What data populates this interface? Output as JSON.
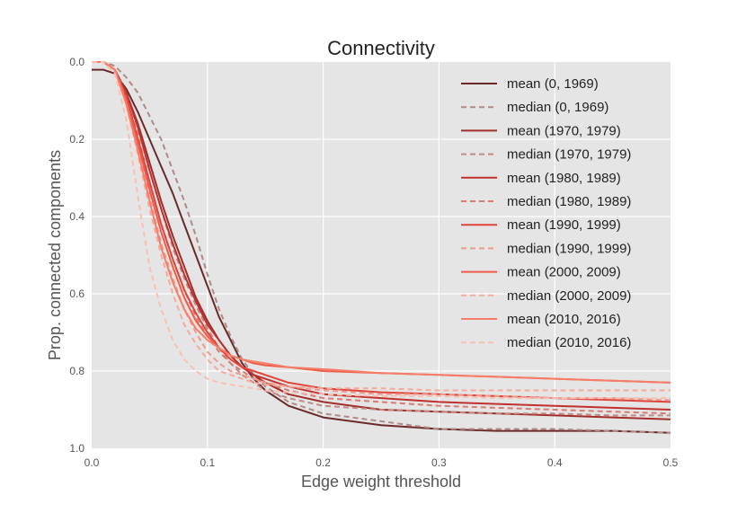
{
  "chart_data": {
    "type": "line",
    "title": "Connectivity",
    "xlabel": "Edge weight threshold",
    "ylabel": "Prop. connected components",
    "xlim": [
      0.0,
      0.5
    ],
    "ylim": [
      0.0,
      1.0
    ],
    "y_inverted": true,
    "grid": true,
    "legend_position": "top-right",
    "x_ticks": [
      0.0,
      0.1,
      0.2,
      0.3,
      0.4,
      0.5
    ],
    "x_tick_labels": [
      "0.0",
      "0.1",
      "0.2",
      "0.3",
      "0.4",
      "0.5"
    ],
    "y_ticks": [
      0.0,
      0.2,
      0.4,
      0.6,
      0.8,
      1.0
    ],
    "y_tick_labels": [
      "0.0",
      "0.2",
      "0.4",
      "0.6",
      "0.8",
      "1.0"
    ],
    "x": [
      0.0,
      0.01,
      0.02,
      0.03,
      0.04,
      0.05,
      0.06,
      0.07,
      0.08,
      0.09,
      0.1,
      0.11,
      0.12,
      0.13,
      0.14,
      0.15,
      0.17,
      0.2,
      0.25,
      0.3,
      0.35,
      0.4,
      0.45,
      0.5
    ],
    "series": [
      {
        "name": "mean (0, 1969)",
        "style": "solid",
        "color": "#6b2a2a",
        "values": [
          0.02,
          0.02,
          0.03,
          0.07,
          0.13,
          0.2,
          0.27,
          0.34,
          0.42,
          0.5,
          0.58,
          0.66,
          0.72,
          0.78,
          0.82,
          0.85,
          0.89,
          0.92,
          0.94,
          0.95,
          0.955,
          0.955,
          0.955,
          0.96
        ]
      },
      {
        "name": "median (0, 1969)",
        "style": "dashed",
        "color": "#b08a88",
        "values": [
          0.0,
          0.0,
          0.01,
          0.04,
          0.08,
          0.14,
          0.2,
          0.28,
          0.36,
          0.45,
          0.55,
          0.64,
          0.71,
          0.77,
          0.81,
          0.84,
          0.88,
          0.91,
          0.93,
          0.95,
          0.95,
          0.95,
          0.955,
          0.96
        ]
      },
      {
        "name": "mean (1970, 1979)",
        "style": "solid",
        "color": "#a12e2b",
        "values": [
          0.0,
          0.0,
          0.02,
          0.08,
          0.16,
          0.26,
          0.36,
          0.45,
          0.53,
          0.61,
          0.67,
          0.72,
          0.76,
          0.79,
          0.81,
          0.83,
          0.86,
          0.88,
          0.9,
          0.905,
          0.91,
          0.915,
          0.92,
          0.925
        ]
      },
      {
        "name": "median (1970, 1979)",
        "style": "dashed",
        "color": "#c08a85",
        "values": [
          0.0,
          0.0,
          0.02,
          0.08,
          0.17,
          0.28,
          0.38,
          0.48,
          0.56,
          0.63,
          0.69,
          0.74,
          0.78,
          0.81,
          0.83,
          0.85,
          0.87,
          0.89,
          0.9,
          0.905,
          0.91,
          0.91,
          0.915,
          0.915
        ]
      },
      {
        "name": "mean (1980, 1989)",
        "style": "solid",
        "color": "#c0302c",
        "values": [
          0.0,
          0.0,
          0.02,
          0.08,
          0.17,
          0.28,
          0.38,
          0.47,
          0.55,
          0.62,
          0.68,
          0.72,
          0.76,
          0.79,
          0.81,
          0.82,
          0.84,
          0.86,
          0.87,
          0.88,
          0.885,
          0.89,
          0.895,
          0.9
        ]
      },
      {
        "name": "median (1980, 1989)",
        "style": "dashed",
        "color": "#db7a72",
        "values": [
          0.0,
          0.0,
          0.02,
          0.09,
          0.19,
          0.31,
          0.42,
          0.51,
          0.59,
          0.66,
          0.71,
          0.75,
          0.78,
          0.8,
          0.82,
          0.83,
          0.85,
          0.87,
          0.88,
          0.89,
          0.895,
          0.9,
          0.905,
          0.91
        ]
      },
      {
        "name": "mean (1990, 1999)",
        "style": "solid",
        "color": "#e0443b",
        "values": [
          0.0,
          0.0,
          0.02,
          0.09,
          0.2,
          0.31,
          0.42,
          0.51,
          0.59,
          0.65,
          0.7,
          0.74,
          0.77,
          0.79,
          0.8,
          0.81,
          0.83,
          0.845,
          0.855,
          0.86,
          0.865,
          0.87,
          0.875,
          0.88
        ]
      },
      {
        "name": "median (1990, 1999)",
        "style": "dashed",
        "color": "#ee9a8e",
        "values": [
          0.0,
          0.0,
          0.02,
          0.1,
          0.22,
          0.35,
          0.47,
          0.56,
          0.64,
          0.7,
          0.75,
          0.78,
          0.8,
          0.81,
          0.82,
          0.83,
          0.84,
          0.85,
          0.86,
          0.86,
          0.865,
          0.87,
          0.87,
          0.875
        ]
      },
      {
        "name": "mean (2000, 2009)",
        "style": "solid",
        "color": "#f05a48",
        "values": [
          0.0,
          0.0,
          0.02,
          0.1,
          0.21,
          0.33,
          0.44,
          0.53,
          0.61,
          0.67,
          0.71,
          0.74,
          0.76,
          0.77,
          0.78,
          0.785,
          0.79,
          0.8,
          0.805,
          0.81,
          0.815,
          0.82,
          0.825,
          0.83
        ]
      },
      {
        "name": "median (2000, 2009)",
        "style": "dashed",
        "color": "#f5aa9c",
        "values": [
          0.0,
          0.0,
          0.02,
          0.11,
          0.24,
          0.38,
          0.5,
          0.6,
          0.68,
          0.73,
          0.77,
          0.8,
          0.81,
          0.82,
          0.83,
          0.835,
          0.84,
          0.845,
          0.845,
          0.85,
          0.85,
          0.85,
          0.85,
          0.85
        ]
      },
      {
        "name": "mean (2010, 2016)",
        "style": "solid",
        "color": "#f57e68",
        "values": [
          0.0,
          0.0,
          0.02,
          0.11,
          0.23,
          0.36,
          0.48,
          0.57,
          0.64,
          0.69,
          0.72,
          0.74,
          0.76,
          0.77,
          0.775,
          0.78,
          0.79,
          0.795,
          0.805,
          0.81,
          0.815,
          0.82,
          0.825,
          0.83
        ]
      },
      {
        "name": "median (2010, 2016)",
        "style": "dashed",
        "color": "#f9c0b2",
        "values": [
          0.0,
          0.0,
          0.03,
          0.15,
          0.35,
          0.53,
          0.64,
          0.72,
          0.77,
          0.8,
          0.82,
          0.83,
          0.835,
          0.84,
          0.845,
          0.85,
          0.855,
          0.86,
          0.865,
          0.865,
          0.87,
          0.87,
          0.87,
          0.87
        ]
      }
    ]
  }
}
